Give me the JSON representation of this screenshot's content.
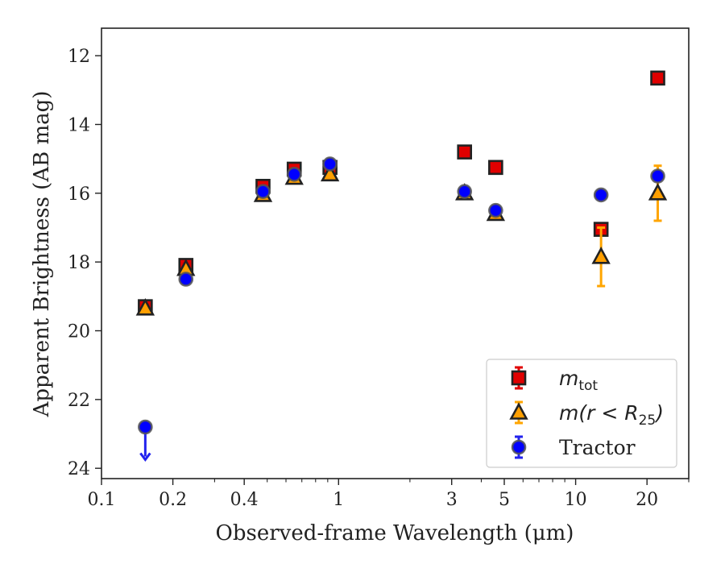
{
  "chart_data": {
    "type": "scatter",
    "xlabel": "Observed-frame Wavelength (μm)",
    "ylabel": "Apparent Brightness (AB mag)",
    "xscale": "log",
    "yscale": "inverted",
    "xlim": [
      0.1,
      30
    ],
    "ylim": [
      24.3,
      11.2
    ],
    "xticks": [
      {
        "v": 0.1,
        "label": "0.1"
      },
      {
        "v": 0.2,
        "label": "0.2"
      },
      {
        "v": 0.4,
        "label": "0.4"
      },
      {
        "v": 1,
        "label": "1"
      },
      {
        "v": 3,
        "label": "3"
      },
      {
        "v": 5,
        "label": "5"
      },
      {
        "v": 10,
        "label": "10"
      },
      {
        "v": 20,
        "label": "20"
      }
    ],
    "yticks": [
      {
        "v": 12,
        "label": "12"
      },
      {
        "v": 14,
        "label": "14"
      },
      {
        "v": 16,
        "label": "16"
      },
      {
        "v": 18,
        "label": "18"
      },
      {
        "v": 20,
        "label": "20"
      },
      {
        "v": 22,
        "label": "22"
      },
      {
        "v": 24,
        "label": "24"
      }
    ],
    "legend_position": "lower-right",
    "series": [
      {
        "name": "m_tot",
        "label_main": "m",
        "label_sub": "tot",
        "marker": "square",
        "color": "#e00000",
        "edge": "#222222",
        "errcolor": "#e00000",
        "points": [
          {
            "x": 0.153,
            "y": 19.3,
            "err": 0.05
          },
          {
            "x": 0.227,
            "y": 18.1,
            "err": 0.1
          },
          {
            "x": 0.48,
            "y": 15.8,
            "err": 0.05
          },
          {
            "x": 0.65,
            "y": 15.3,
            "err": 0.05
          },
          {
            "x": 0.92,
            "y": 15.25,
            "err": 0.05
          },
          {
            "x": 3.4,
            "y": 14.8,
            "err": 0.05
          },
          {
            "x": 4.6,
            "y": 15.25,
            "err": 0.05
          },
          {
            "x": 12.8,
            "y": 17.05,
            "err": 0.1
          },
          {
            "x": 22.2,
            "y": 12.65,
            "err": 0.05
          }
        ]
      },
      {
        "name": "m(r < R25)",
        "label_main": "m(r < R",
        "label_sub": "25",
        "label_tail": ")",
        "marker": "triangle",
        "color": "#ff9f00",
        "edge": "#222222",
        "errcolor": "#ffa500",
        "points": [
          {
            "x": 0.153,
            "y": 19.35,
            "err": 0.05
          },
          {
            "x": 0.227,
            "y": 18.2,
            "err": 0.05
          },
          {
            "x": 0.48,
            "y": 16.05,
            "err": 0.05
          },
          {
            "x": 0.65,
            "y": 15.55,
            "err": 0.05
          },
          {
            "x": 0.92,
            "y": 15.45,
            "err": 0.05
          },
          {
            "x": 3.4,
            "y": 16.0,
            "err": 0.05
          },
          {
            "x": 4.6,
            "y": 16.6,
            "err": 0.05
          },
          {
            "x": 12.8,
            "y": 17.85,
            "err": 0.85
          },
          {
            "x": 22.2,
            "y": 16.0,
            "err": 0.8
          }
        ]
      },
      {
        "name": "Tractor",
        "label_main": "Tractor",
        "marker": "circle",
        "color": "#0000ff",
        "edge": "#555555",
        "errcolor": "#2222ee",
        "points": [
          {
            "x": 0.153,
            "y": 22.8,
            "err": 0,
            "upper_limit": true
          },
          {
            "x": 0.227,
            "y": 18.5,
            "err": 0.05
          },
          {
            "x": 0.48,
            "y": 15.95,
            "err": 0.05
          },
          {
            "x": 0.65,
            "y": 15.45,
            "err": 0.05
          },
          {
            "x": 0.92,
            "y": 15.15,
            "err": 0.05
          },
          {
            "x": 3.4,
            "y": 15.95,
            "err": 0.05
          },
          {
            "x": 4.6,
            "y": 16.5,
            "err": 0.05
          },
          {
            "x": 12.8,
            "y": 16.05,
            "err": 0.05
          },
          {
            "x": 22.2,
            "y": 15.5,
            "err": 0.05
          }
        ]
      }
    ]
  }
}
